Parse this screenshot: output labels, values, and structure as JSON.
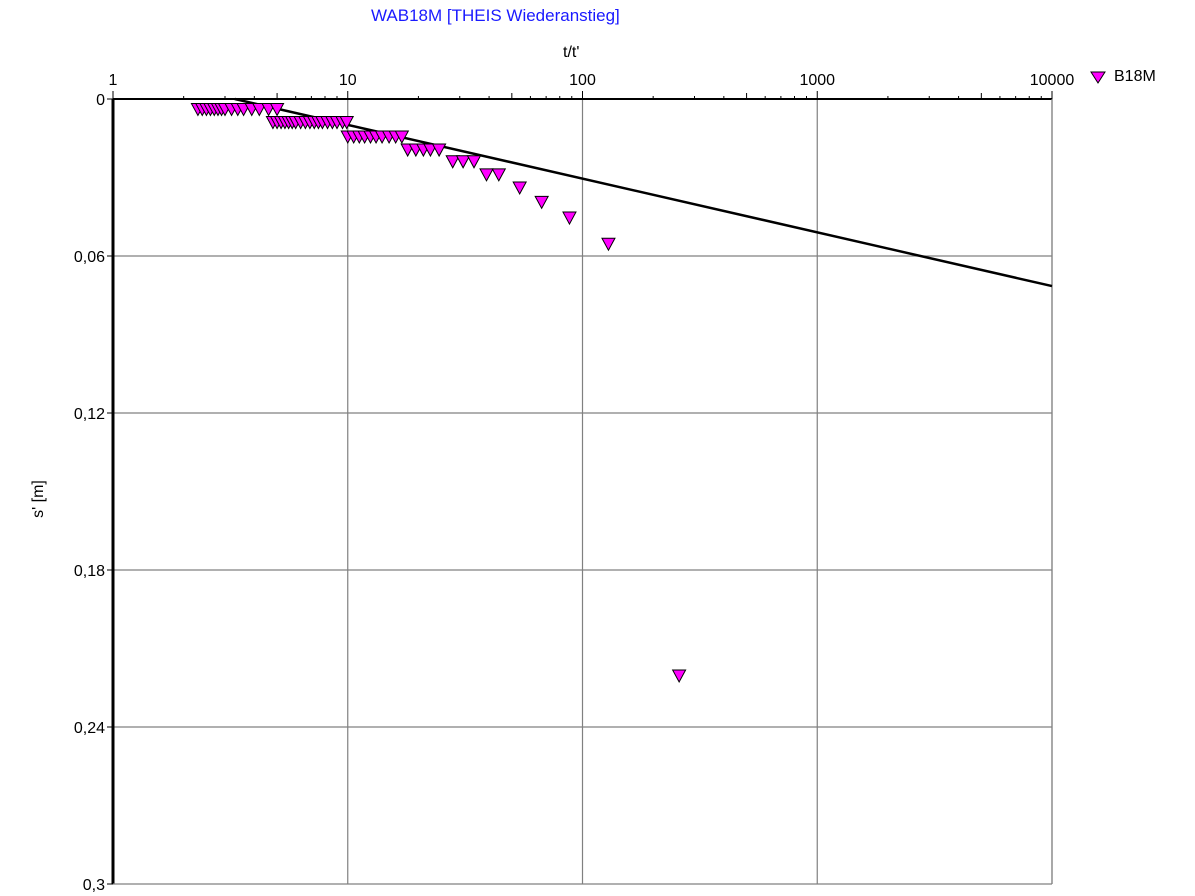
{
  "chart_data": {
    "type": "scatter",
    "title": "WAB18M [THEIS Wiederanstieg]",
    "title_color": "#1a1aff",
    "xlabel": "t/t'",
    "ylabel": "s' [m]",
    "x_scale": "log",
    "xlim": [
      1,
      10000
    ],
    "ylim": [
      0,
      0.3
    ],
    "y_inverted": true,
    "x_tick_labels": [
      "1",
      "10",
      "100",
      "1000",
      "10000"
    ],
    "y_tick_labels": [
      "0",
      "0,06",
      "0,12",
      "0,18",
      "0,24",
      "0,3"
    ],
    "y_ticks": [
      0,
      0.06,
      0.12,
      0.18,
      0.24,
      0.3
    ],
    "x_ticks": [
      1,
      10,
      100,
      1000,
      10000
    ],
    "grid": true,
    "legend_position": "top-right",
    "series": [
      {
        "name": "B18M",
        "marker": "triangle-down",
        "color": "#ff00ff",
        "points": [
          [
            2.3,
            0.004
          ],
          [
            2.4,
            0.004
          ],
          [
            2.5,
            0.004
          ],
          [
            2.6,
            0.004
          ],
          [
            2.7,
            0.004
          ],
          [
            2.8,
            0.004
          ],
          [
            2.9,
            0.004
          ],
          [
            3.0,
            0.004
          ],
          [
            3.2,
            0.004
          ],
          [
            3.4,
            0.004
          ],
          [
            3.6,
            0.004
          ],
          [
            3.9,
            0.004
          ],
          [
            4.2,
            0.004
          ],
          [
            4.6,
            0.004
          ],
          [
            5.0,
            0.004
          ],
          [
            4.8,
            0.009
          ],
          [
            5.0,
            0.009
          ],
          [
            5.2,
            0.009
          ],
          [
            5.4,
            0.009
          ],
          [
            5.6,
            0.009
          ],
          [
            5.8,
            0.009
          ],
          [
            6.0,
            0.009
          ],
          [
            6.3,
            0.009
          ],
          [
            6.6,
            0.009
          ],
          [
            6.9,
            0.009
          ],
          [
            7.2,
            0.009
          ],
          [
            7.5,
            0.009
          ],
          [
            7.8,
            0.009
          ],
          [
            8.2,
            0.009
          ],
          [
            8.6,
            0.009
          ],
          [
            9.0,
            0.009
          ],
          [
            9.5,
            0.009
          ],
          [
            9.9,
            0.009
          ],
          [
            10,
            0.0145
          ],
          [
            10.6,
            0.0145
          ],
          [
            11.2,
            0.0145
          ],
          [
            11.8,
            0.0145
          ],
          [
            12.5,
            0.0145
          ],
          [
            13.2,
            0.0145
          ],
          [
            14,
            0.0145
          ],
          [
            15,
            0.0145
          ],
          [
            16,
            0.0145
          ],
          [
            17,
            0.0145
          ],
          [
            18,
            0.0195
          ],
          [
            19.5,
            0.0195
          ],
          [
            21,
            0.0195
          ],
          [
            22.5,
            0.0195
          ],
          [
            24.5,
            0.0195
          ],
          [
            28,
            0.024
          ],
          [
            31,
            0.024
          ],
          [
            34.5,
            0.024
          ],
          [
            39,
            0.029
          ],
          [
            44,
            0.029
          ],
          [
            54,
            0.034
          ],
          [
            67,
            0.0395
          ],
          [
            88,
            0.0455
          ],
          [
            129,
            0.0555
          ],
          [
            258,
            0.2205
          ]
        ]
      }
    ],
    "fit_line": {
      "label": "",
      "color": "#000000",
      "points": [
        [
          3.3,
          0.0
        ],
        [
          10000,
          0.0715
        ]
      ]
    }
  }
}
